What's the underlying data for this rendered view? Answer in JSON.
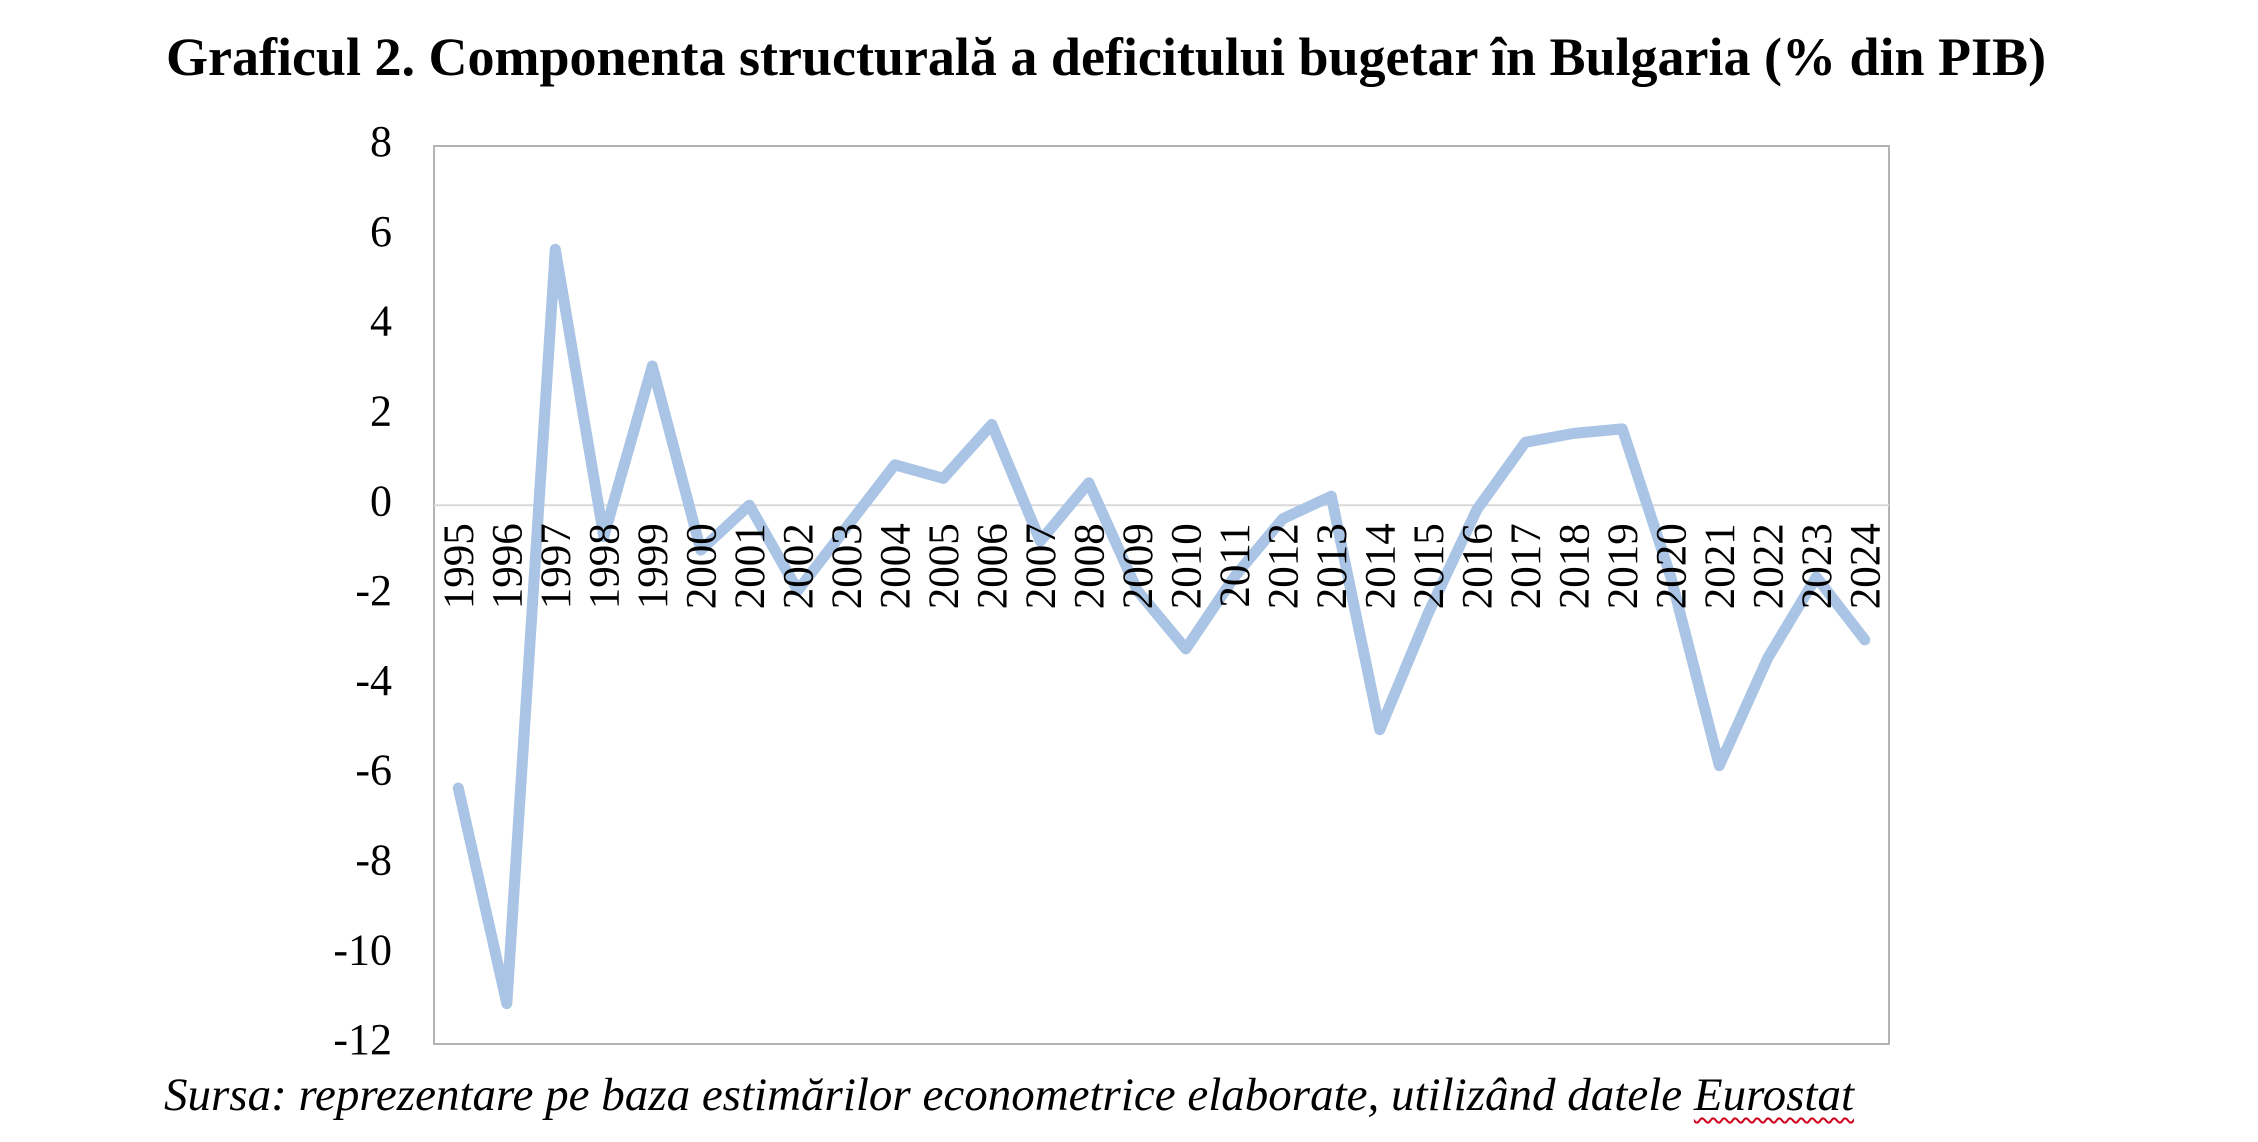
{
  "title": "Graficul 2. Componenta structurală a deficitului bugetar în Bulgaria (% din PIB)",
  "source": {
    "prefix": "Sursa: reprezentare pe baza estimărilor econometrice elaborate, utilizând datele ",
    "highlight": "Eurostat"
  },
  "chart_data": {
    "type": "line",
    "title": "Graficul 2. Componenta structurală a deficitului bugetar în Bulgaria (% din PIB)",
    "xlabel": "",
    "ylabel": "",
    "ylim": [
      -12,
      8
    ],
    "yticks": [
      8,
      6,
      4,
      2,
      0,
      -2,
      -4,
      -6,
      -8,
      -10,
      -12
    ],
    "grid": false,
    "legend": "none",
    "line_color": "#a9c4e4",
    "categories": [
      "1995",
      "1996",
      "1997",
      "1998",
      "1999",
      "2000",
      "2001",
      "2002",
      "2003",
      "2004",
      "2005",
      "2006",
      "2007",
      "2008",
      "2009",
      "2010",
      "2011",
      "2012",
      "2013",
      "2014",
      "2015",
      "2016",
      "2017",
      "2018",
      "2019",
      "2020",
      "2021",
      "2022",
      "2023",
      "2024"
    ],
    "series": [
      {
        "values": [
          -6.3,
          -11.1,
          5.7,
          -0.7,
          3.1,
          -1.0,
          0.0,
          -1.9,
          -0.5,
          0.9,
          0.6,
          1.8,
          -0.8,
          0.5,
          -1.9,
          -3.2,
          -1.6,
          -0.3,
          0.2,
          -5.0,
          -2.4,
          -0.1,
          1.4,
          1.6,
          1.7,
          -1.6,
          -5.8,
          -3.4,
          -1.6,
          -3.0
        ]
      }
    ]
  }
}
